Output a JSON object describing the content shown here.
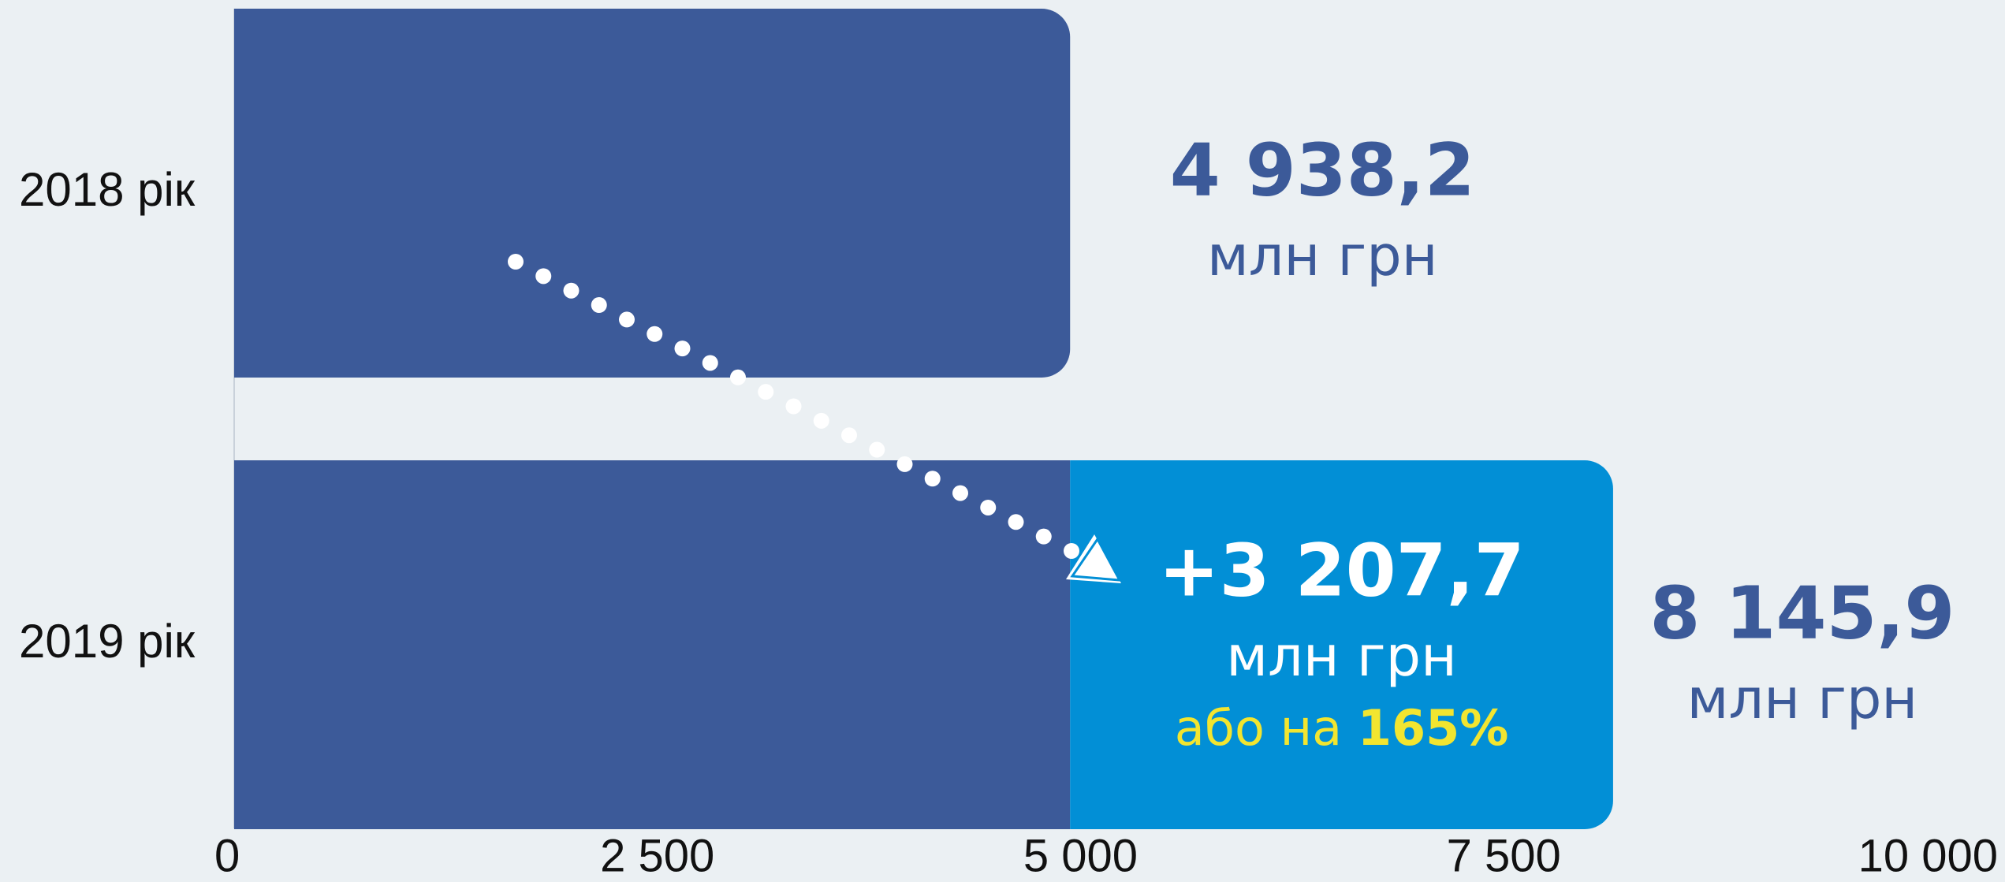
{
  "chart_data": {
    "type": "stacked_barh",
    "categories": [
      "2018 рік",
      "2019 рік"
    ],
    "series": [
      {
        "color": "#3c5a99",
        "values": [
          4938.2,
          4938.2
        ],
        "value_labels": [
          "4 938,2",
          null
        ]
      },
      {
        "color": "#028fd6",
        "values": [
          null,
          3207.7
        ],
        "value_labels": [
          null,
          "+3 207,7"
        ]
      }
    ],
    "unit": "млн грн",
    "total": {
      "value": 8145.9,
      "label": "8 145,9"
    },
    "growth": {
      "prefix": "або на ",
      "value": 165,
      "label": "165%",
      "color": "#f2e530"
    },
    "xlim": [
      0,
      10000
    ],
    "xticks": [
      0,
      {
        "value": 2500,
        "label": "2 500"
      },
      {
        "value": 5000,
        "label": "5 000"
      },
      {
        "value": 7500,
        "label": "7 500"
      },
      {
        "value": 10000,
        "label": "10 000"
      }
    ],
    "grid": true
  }
}
